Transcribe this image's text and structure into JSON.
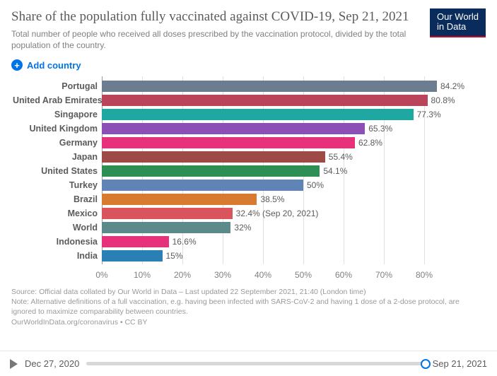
{
  "header": {
    "title": "Share of the population fully vaccinated against COVID-19, Sep 21, 2021",
    "subtitle": "Total number of people who received all doses prescribed by the vaccination protocol, divided by the total population of the country.",
    "logo_text": "Our World\nin Data"
  },
  "controls": {
    "add_country_label": "Add country"
  },
  "chart": {
    "type": "bar-horizontal",
    "x_max_pct": 90,
    "ticks": [
      0,
      10,
      20,
      30,
      40,
      50,
      60,
      70,
      80
    ],
    "tick_suffix": "%",
    "gridline_color": "#e0e0e0",
    "axis_color": "#999999",
    "rows": [
      {
        "label": "Portugal",
        "value": 84.2,
        "text": "84.2%",
        "color": "#6d7d91"
      },
      {
        "label": "United Arab Emirates",
        "value": 80.8,
        "text": "80.8%",
        "color": "#ba455a"
      },
      {
        "label": "Singapore",
        "value": 77.3,
        "text": "77.3%",
        "color": "#1fa8a2"
      },
      {
        "label": "United Kingdom",
        "value": 65.3,
        "text": "65.3%",
        "color": "#8b4fb5"
      },
      {
        "label": "Germany",
        "value": 62.8,
        "text": "62.8%",
        "color": "#e6327a"
      },
      {
        "label": "Japan",
        "value": 55.4,
        "text": "55.4%",
        "color": "#9e4a47"
      },
      {
        "label": "United States",
        "value": 54.1,
        "text": "54.1%",
        "color": "#2d8f53"
      },
      {
        "label": "Turkey",
        "value": 50,
        "text": "50%",
        "color": "#5f84b5"
      },
      {
        "label": "Brazil",
        "value": 38.5,
        "text": "38.5%",
        "color": "#d97b2f"
      },
      {
        "label": "Mexico",
        "value": 32.4,
        "text": "32.4% (Sep 20, 2021)",
        "color": "#d9545c"
      },
      {
        "label": "World",
        "value": 32,
        "text": "32%",
        "color": "#5c8a8a"
      },
      {
        "label": "Indonesia",
        "value": 16.6,
        "text": "16.6%",
        "color": "#e6327a"
      },
      {
        "label": "India",
        "value": 15,
        "text": "15%",
        "color": "#2a7fb5"
      }
    ]
  },
  "source": {
    "line1": "Source: Official data collated by Our World in Data – Last updated 22 September 2021, 21:40 (London time)",
    "line2": "Note: Alternative definitions of a full vaccination, e.g. having been infected with SARS-CoV-2 and having 1 dose of a 2-dose protocol, are ignored to maximize comparability between countries.",
    "line3": "OurWorldInData.org/coronavirus • CC BY"
  },
  "timeline": {
    "start": "Dec 27, 2020",
    "end": "Sep 21, 2021"
  }
}
